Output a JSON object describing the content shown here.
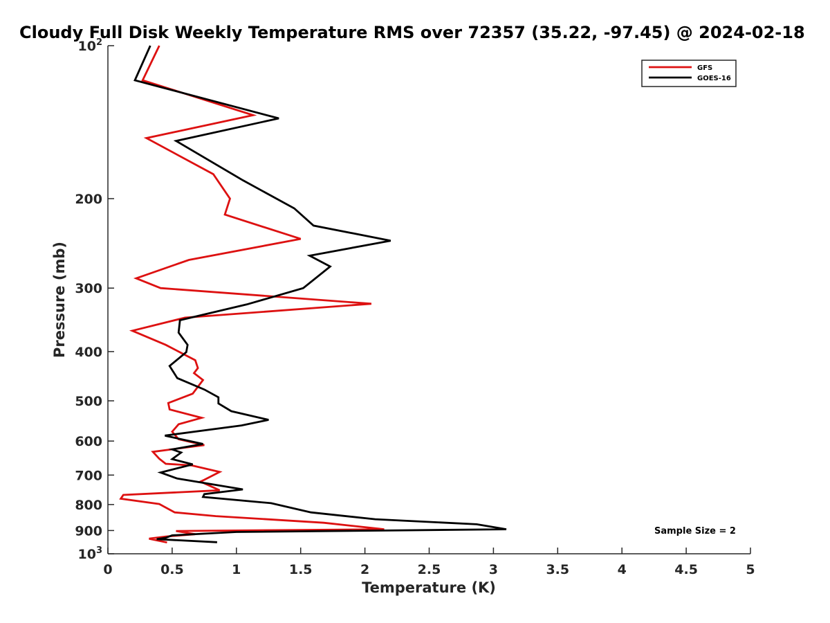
{
  "chart_data": {
    "type": "line",
    "title": "Cloudy Full Disk Weekly Temperature RMS over 72357 (35.22, -97.45) @ 2024-02-18",
    "xlabel": "Temperature (K)",
    "ylabel": "Pressure (mb)",
    "xlim": [
      0,
      5
    ],
    "ylim": [
      100,
      1000
    ],
    "y_scale": "log",
    "y_reversed": true,
    "grid": false,
    "legend_position": "top-right",
    "x_ticks": [
      "0",
      "0.5",
      "1",
      "1.5",
      "2",
      "2.5",
      "3",
      "3.5",
      "4",
      "4.5",
      "5"
    ],
    "y_ticks": [
      {
        "value": 100,
        "base": "10",
        "exp": "2"
      },
      {
        "value": 200,
        "label": "200"
      },
      {
        "value": 300,
        "label": "300"
      },
      {
        "value": 400,
        "label": "400"
      },
      {
        "value": 500,
        "label": "500"
      },
      {
        "value": 600,
        "label": "600"
      },
      {
        "value": 700,
        "label": "700"
      },
      {
        "value": 800,
        "label": "800"
      },
      {
        "value": 900,
        "label": "900"
      },
      {
        "value": 1000,
        "base": "10",
        "exp": "3"
      }
    ],
    "series": [
      {
        "name": "GFS",
        "color": "#dd1111",
        "points": [
          [
            0.4,
            100
          ],
          [
            0.27,
            117
          ],
          [
            1.13,
            137
          ],
          [
            0.3,
            152
          ],
          [
            0.82,
            179
          ],
          [
            0.95,
            200
          ],
          [
            0.91,
            215
          ],
          [
            1.5,
            240
          ],
          [
            0.63,
            264
          ],
          [
            0.22,
            287
          ],
          [
            0.41,
            300
          ],
          [
            2.05,
            322
          ],
          [
            0.6,
            343
          ],
          [
            0.19,
            364
          ],
          [
            0.45,
            388
          ],
          [
            0.68,
            416
          ],
          [
            0.7,
            431
          ],
          [
            0.67,
            441
          ],
          [
            0.74,
            455
          ],
          [
            0.66,
            484
          ],
          [
            0.47,
            505
          ],
          [
            0.48,
            520
          ],
          [
            0.73,
            540
          ],
          [
            0.55,
            556
          ],
          [
            0.5,
            575
          ],
          [
            0.55,
            595
          ],
          [
            0.75,
            611
          ],
          [
            0.35,
            630
          ],
          [
            0.4,
            650
          ],
          [
            0.45,
            665
          ],
          [
            0.65,
            670
          ],
          [
            0.87,
            690
          ],
          [
            0.75,
            715
          ],
          [
            0.72,
            721
          ],
          [
            0.87,
            750
          ],
          [
            0.12,
            766
          ],
          [
            0.1,
            779
          ],
          [
            0.4,
            798
          ],
          [
            0.52,
            829
          ],
          [
            0.84,
            843
          ],
          [
            1.68,
            869
          ],
          [
            2.15,
            895
          ],
          [
            0.53,
            902
          ],
          [
            0.68,
            915
          ],
          [
            0.45,
            925
          ],
          [
            0.32,
            934
          ],
          [
            0.46,
            950
          ]
        ]
      },
      {
        "name": "GOES-16",
        "color": "#000000",
        "points": [
          [
            0.33,
            100
          ],
          [
            0.21,
            117
          ],
          [
            1.33,
            139
          ],
          [
            0.53,
            154
          ],
          [
            1.05,
            184
          ],
          [
            1.45,
            209
          ],
          [
            1.6,
            226
          ],
          [
            2.2,
            242
          ],
          [
            1.57,
            259
          ],
          [
            1.73,
            272
          ],
          [
            1.52,
            300
          ],
          [
            1.08,
            323
          ],
          [
            0.56,
            347
          ],
          [
            0.56,
            349
          ],
          [
            0.55,
            367
          ],
          [
            0.62,
            388
          ],
          [
            0.61,
            401
          ],
          [
            0.48,
            427
          ],
          [
            0.54,
            451
          ],
          [
            0.75,
            475
          ],
          [
            0.86,
            492
          ],
          [
            0.86,
            506
          ],
          [
            0.96,
            524
          ],
          [
            1.25,
            545
          ],
          [
            1.04,
            559
          ],
          [
            0.45,
            585
          ],
          [
            0.45,
            586
          ],
          [
            0.74,
            608
          ],
          [
            0.5,
            623
          ],
          [
            0.57,
            632
          ],
          [
            0.5,
            651
          ],
          [
            0.66,
            667
          ],
          [
            0.41,
            692
          ],
          [
            0.54,
            711
          ],
          [
            1.05,
            747
          ],
          [
            0.75,
            763
          ],
          [
            0.74,
            773
          ],
          [
            1.27,
            795
          ],
          [
            1.58,
            829
          ],
          [
            2.08,
            855
          ],
          [
            2.87,
            875
          ],
          [
            3.1,
            895
          ],
          [
            1.0,
            906
          ],
          [
            0.5,
            920
          ],
          [
            0.45,
            930
          ],
          [
            0.38,
            936
          ],
          [
            0.85,
            949
          ]
        ]
      }
    ],
    "annotation": "Sample Size = 2"
  }
}
